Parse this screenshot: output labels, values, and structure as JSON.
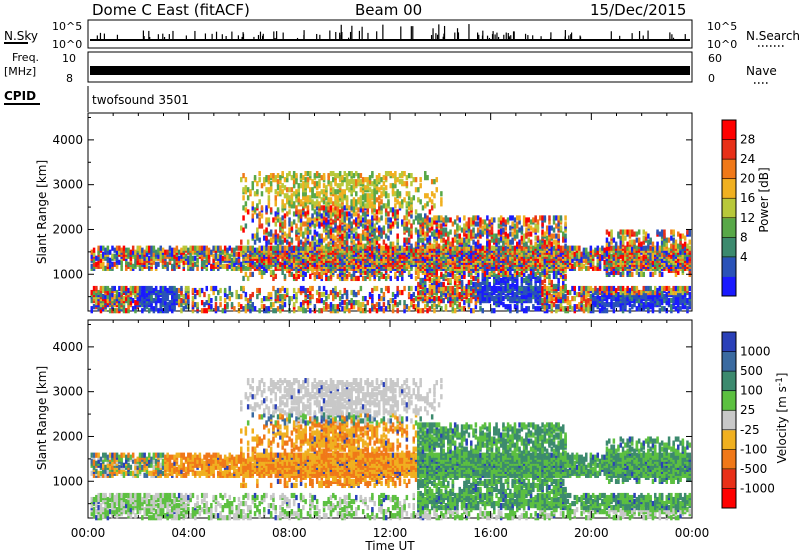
{
  "header": {
    "title": "Dome C East (fitACF)",
    "beam": "Beam 00",
    "date": "15/Dec/2015"
  },
  "strips": {
    "nsky_label": "N.Sky",
    "nsky_ticks": [
      "10^5",
      "10^0"
    ],
    "nsearch_label": "N.Search",
    "freq_label_1": "Freq.",
    "freq_label_2": "[MHz]",
    "freq_ticks": [
      "10",
      "8"
    ],
    "nave_label": "Nave",
    "nave_ticks": [
      "60",
      "0"
    ],
    "cpid_label": "CPID",
    "cpid_value": "twofsound 3501"
  },
  "chart_data": [
    {
      "type": "heatmap",
      "quantity": "Power",
      "ylabel": "Slant Range [km]",
      "xlabel": "Time UT",
      "ylim": [
        180,
        4600
      ],
      "y_ticks": [
        1000,
        2000,
        3000,
        4000
      ],
      "x_ticks": [
        "00:00",
        "04:00",
        "08:00",
        "12:00",
        "16:00",
        "20:00",
        "00:00"
      ],
      "colorbar": {
        "label": "Power [dB]",
        "ticks": [
          "4",
          "8",
          "12",
          "16",
          "20",
          "24",
          "28"
        ],
        "colors": [
          "#1a1aff",
          "#2a52b8",
          "#3c8a6e",
          "#58a848",
          "#b8c83a",
          "#f0b020",
          "#f07818",
          "#e83018",
          "#ff0000"
        ]
      }
    },
    {
      "type": "heatmap",
      "quantity": "Velocity",
      "ylabel": "Slant Range [km]",
      "xlabel": "Time UT",
      "ylim": [
        180,
        4600
      ],
      "y_ticks": [
        1000,
        2000,
        3000,
        4000
      ],
      "x_ticks": [
        "00:00",
        "04:00",
        "08:00",
        "12:00",
        "16:00",
        "20:00",
        "00:00"
      ],
      "colorbar": {
        "label": "Velocity [m s",
        "label_sup": "-1",
        "label_end": "]",
        "ticks": [
          "1000",
          "500",
          "100",
          "25",
          "-25",
          "-100",
          "-500",
          "-1000"
        ],
        "colors": [
          "#2a40b8",
          "#3a6aa0",
          "#3c8a6e",
          "#5cc040",
          "#c8c8c8",
          "#f0b020",
          "#f07818",
          "#e83018",
          "#ff0000"
        ]
      }
    }
  ]
}
